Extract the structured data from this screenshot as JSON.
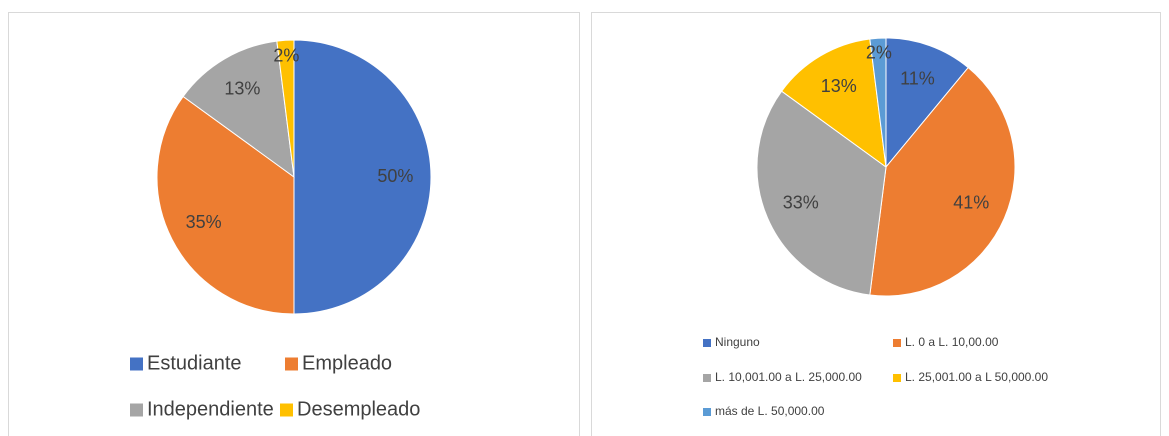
{
  "chart_data": [
    {
      "type": "pie",
      "categories": [
        "Estudiante",
        "Empleado",
        "Independiente",
        "Desempleado"
      ],
      "values": [
        50,
        35,
        13,
        2
      ],
      "value_labels": [
        "50%",
        "35%",
        "13%",
        "2%"
      ],
      "colors": [
        "#4472c4",
        "#ed7d31",
        "#a5a5a5",
        "#ffc000"
      ],
      "legend": "bottom"
    },
    {
      "type": "pie",
      "categories": [
        "Ninguno",
        "L. 0 a L. 10,00.00",
        "L. 10,001.00 a L. 25,000.00",
        "L. 25,001.00 a L 50,000.00",
        "más de L. 50,000.00"
      ],
      "values": [
        11,
        41,
        33,
        13,
        2
      ],
      "value_labels": [
        "11%",
        "41%",
        "33%",
        "13%",
        "2%"
      ],
      "colors": [
        "#4472c4",
        "#ed7d31",
        "#a5a5a5",
        "#ffc000",
        "#5b9bd5"
      ],
      "legend": "bottom"
    }
  ]
}
